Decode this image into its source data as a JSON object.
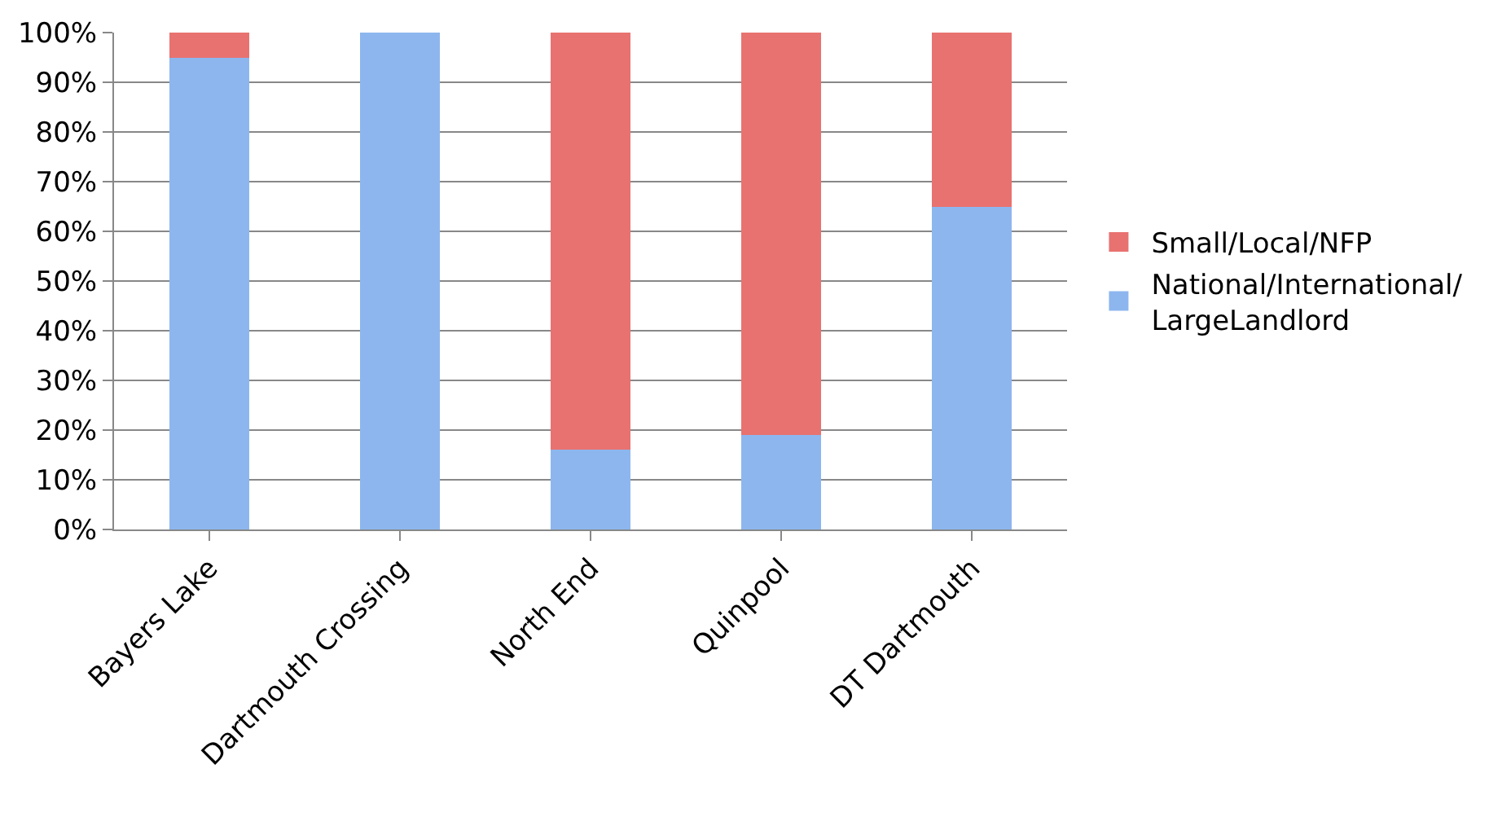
{
  "chart_data": {
    "type": "bar",
    "stacked": true,
    "categories": [
      "Bayers Lake",
      "Dartmouth Crossing",
      "North End",
      "Quinpool",
      "DT Dartmouth"
    ],
    "series": [
      {
        "name": "National/International/LargeLandlord",
        "color": "#8db6ee",
        "values": [
          95,
          100,
          16,
          19,
          65
        ]
      },
      {
        "name": "Small/Local/NFP",
        "color": "#e87270",
        "values": [
          5,
          0,
          84,
          81,
          35
        ]
      }
    ],
    "ylim": [
      0,
      100
    ],
    "yticks": [
      {
        "value": 0,
        "label": "0%"
      },
      {
        "value": 10,
        "label": "10%"
      },
      {
        "value": 20,
        "label": "20%"
      },
      {
        "value": 30,
        "label": "30%"
      },
      {
        "value": 40,
        "label": "40%"
      },
      {
        "value": 50,
        "label": "50%"
      },
      {
        "value": 60,
        "label": "60%"
      },
      {
        "value": 70,
        "label": "70%"
      },
      {
        "value": 80,
        "label": "80%"
      },
      {
        "value": 90,
        "label": "90%"
      },
      {
        "value": 100,
        "label": "100%"
      }
    ],
    "grid": "y",
    "legend": "right"
  }
}
